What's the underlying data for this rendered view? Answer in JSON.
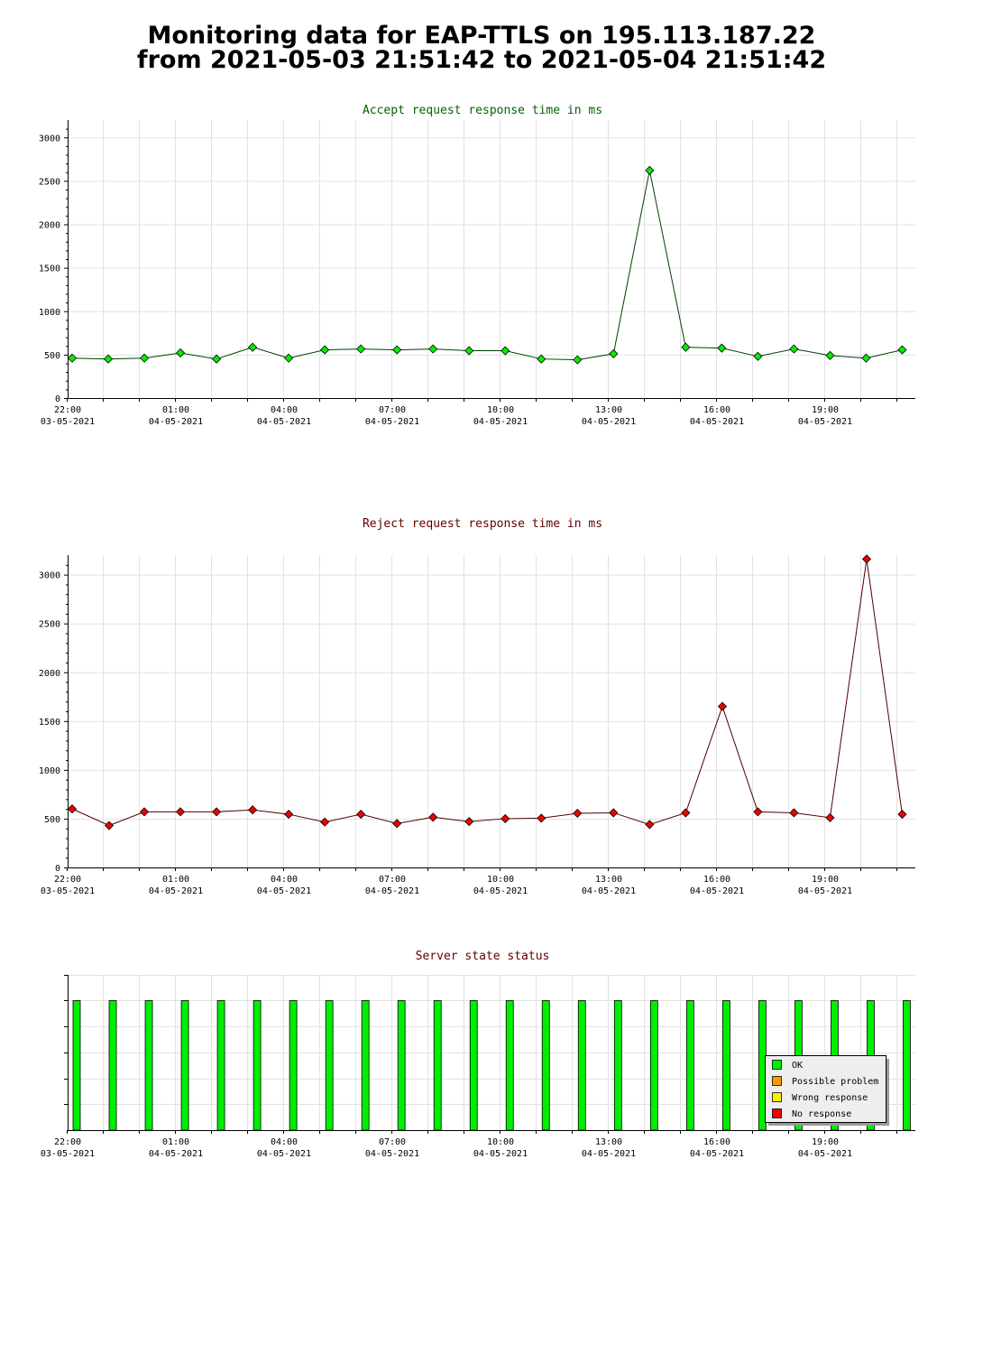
{
  "page": {
    "title_line1": "Monitoring data for EAP-TTLS on 195.113.187.22",
    "title_line2": "from 2021-05-03 21:51:42 to 2021-05-04 21:51:42"
  },
  "x_axis": {
    "ticks": [
      {
        "time": "22:00",
        "date": "03-05-2021"
      },
      {
        "time": "01:00",
        "date": "04-05-2021"
      },
      {
        "time": "04:00",
        "date": "04-05-2021"
      },
      {
        "time": "07:00",
        "date": "04-05-2021"
      },
      {
        "time": "10:00",
        "date": "04-05-2021"
      },
      {
        "time": "13:00",
        "date": "04-05-2021"
      },
      {
        "time": "16:00",
        "date": "04-05-2021"
      },
      {
        "time": "19:00",
        "date": "04-05-2021"
      }
    ]
  },
  "chart_data": [
    {
      "type": "line",
      "title": "Accept request response time in ms",
      "title_color": "#006400",
      "line_color": "#004000",
      "marker_color": "#00ee00",
      "ylim": [
        0,
        3200
      ],
      "yticks": [
        0,
        500,
        1000,
        1500,
        2000,
        2500,
        3000
      ],
      "x": [
        "22:00",
        "23:00",
        "00:00",
        "01:00",
        "02:00",
        "03:00",
        "04:00",
        "05:00",
        "06:00",
        "07:00",
        "08:00",
        "09:00",
        "10:00",
        "11:00",
        "12:00",
        "13:00",
        "14:00",
        "15:00",
        "16:00",
        "17:00",
        "18:00",
        "19:00",
        "20:00",
        "21:00"
      ],
      "values": [
        460,
        450,
        460,
        520,
        450,
        585,
        460,
        555,
        565,
        555,
        565,
        545,
        545,
        450,
        440,
        510,
        2620,
        585,
        575,
        480,
        565,
        490,
        460,
        555
      ],
      "grid": true
    },
    {
      "type": "line",
      "title": "Reject request response time in ms",
      "title_color": "#600000",
      "line_color": "#500000",
      "marker_color": "#ee0000",
      "ylim": [
        0,
        3200
      ],
      "yticks": [
        0,
        500,
        1000,
        1500,
        2000,
        2500,
        3000
      ],
      "x": [
        "21:52",
        "23:00",
        "00:00",
        "01:00",
        "02:00",
        "03:00",
        "04:00",
        "05:00",
        "06:00",
        "07:00",
        "08:00",
        "09:00",
        "10:00",
        "11:00",
        "12:00",
        "13:00",
        "14:00",
        "15:00",
        "16:00",
        "17:00",
        "18:00",
        "19:00",
        "20:00",
        "21:00"
      ],
      "values": [
        600,
        430,
        570,
        570,
        570,
        590,
        545,
        465,
        545,
        450,
        515,
        470,
        500,
        505,
        555,
        560,
        440,
        560,
        1650,
        570,
        560,
        510,
        3160,
        545
      ],
      "grid": true
    },
    {
      "type": "bar",
      "title": "Server state status",
      "title_color": "#600000",
      "states": [
        "OK",
        "OK",
        "OK",
        "OK",
        "OK",
        "OK",
        "OK",
        "OK",
        "OK",
        "OK",
        "OK",
        "OK",
        "OK",
        "OK",
        "OK",
        "OK",
        "OK",
        "OK",
        "OK",
        "OK",
        "OK",
        "OK",
        "OK",
        "OK"
      ],
      "legend": [
        {
          "label": "OK",
          "color": "#00ee00"
        },
        {
          "label": "Possible problem",
          "color": "#ff9900"
        },
        {
          "label": "Wrong response",
          "color": "#ffee00"
        },
        {
          "label": "No response",
          "color": "#ee0000"
        }
      ],
      "legend_position": "bottom-right",
      "grid": true
    }
  ]
}
